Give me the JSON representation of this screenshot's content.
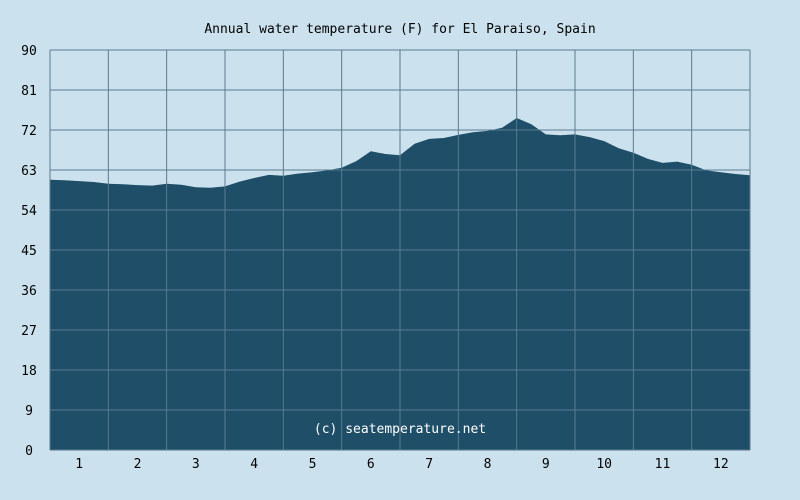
{
  "chart_data": {
    "type": "area",
    "title": "Annual water temperature (F) for El Paraiso, Spain",
    "xlabel": "",
    "ylabel": "",
    "ylim": [
      0,
      90
    ],
    "xlim": [
      0.5,
      12.5
    ],
    "y_ticks": [
      "0",
      "9",
      "18",
      "27",
      "36",
      "45",
      "54",
      "63",
      "72",
      "81",
      "90"
    ],
    "categories": [
      "1",
      "2",
      "3",
      "4",
      "5",
      "6",
      "7",
      "8",
      "9",
      "10",
      "11",
      "12"
    ],
    "grid": true,
    "watermark": "(c) seatemperature.net",
    "colors": {
      "background": "#cbe2ee",
      "fill": "#1e4e68",
      "grid": "#5b7a8e"
    },
    "series": [
      {
        "x": [
          0.5,
          0.75,
          1.0,
          1.25,
          1.5,
          1.75,
          2.0,
          2.25,
          2.5,
          2.75,
          3.0,
          3.25,
          3.5,
          3.75,
          4.0,
          4.25,
          4.5,
          4.75,
          5.0,
          5.25,
          5.5,
          5.75,
          6.0,
          6.25,
          6.5,
          6.75,
          7.0,
          7.25,
          7.5,
          7.75,
          8.0,
          8.25,
          8.5,
          8.75,
          9.0,
          9.25,
          9.5,
          9.75,
          10.0,
          10.25,
          10.5,
          10.75,
          11.0,
          11.25,
          11.5,
          11.75,
          12.0,
          12.25,
          12.5
        ],
        "values": [
          60.8,
          60.7,
          60.5,
          60.3,
          59.9,
          59.8,
          59.6,
          59.5,
          59.9,
          59.7,
          59.1,
          59.0,
          59.3,
          60.4,
          61.2,
          61.9,
          61.7,
          62.2,
          62.5,
          62.9,
          63.5,
          65.0,
          67.2,
          66.6,
          66.3,
          68.9,
          70.0,
          70.2,
          70.9,
          71.5,
          71.8,
          72.5,
          74.7,
          73.3,
          71.0,
          70.8,
          71.0,
          70.4,
          69.5,
          67.9,
          66.9,
          65.5,
          64.6,
          64.9,
          64.2,
          62.9,
          62.5,
          62.1,
          61.8
        ]
      }
    ]
  }
}
